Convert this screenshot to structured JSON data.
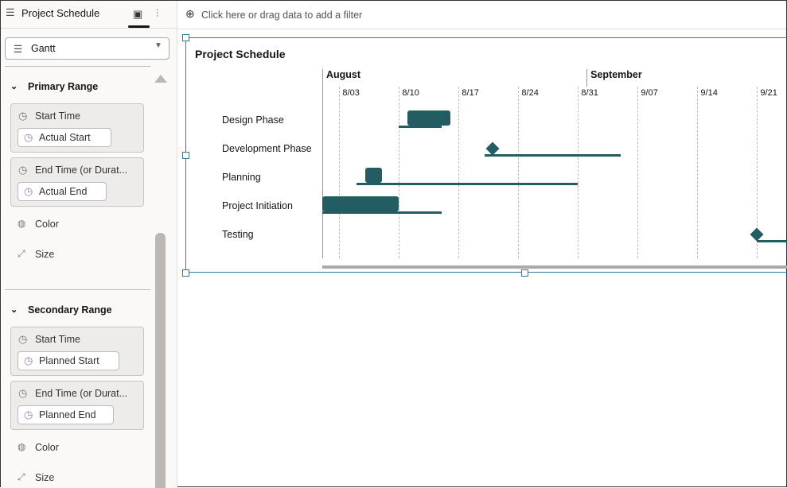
{
  "sidebar": {
    "title": "Project Schedule",
    "viz_type": "Gantt",
    "primary": {
      "heading": "Primary Range",
      "start_label": "Start Time",
      "start_value": "Actual Start",
      "end_label": "End Time (or Durat...",
      "end_value": "Actual End",
      "color": "Color",
      "size": "Size"
    },
    "secondary": {
      "heading": "Secondary Range",
      "start_label": "Start Time",
      "start_value": "Planned Start",
      "end_label": "End Time (or Durat...",
      "end_value": "Planned End",
      "color": "Color",
      "size": "Size"
    }
  },
  "filter": {
    "placeholder": "Click here or drag data to add a filter"
  },
  "chart_data": {
    "type": "gantt",
    "title": "Project Schedule",
    "months": [
      "August",
      "September"
    ],
    "ticks": [
      "8/03",
      "8/10",
      "8/17",
      "8/24",
      "8/31",
      "9/07",
      "9/14",
      "9/21"
    ],
    "bar_color": "#245c63",
    "tasks": [
      {
        "name": "Design Phase",
        "actual": [
          "8/11",
          "8/16"
        ],
        "planned": [
          "8/10",
          "8/15"
        ]
      },
      {
        "name": "Development Phase",
        "actual": [
          "8/21",
          "8/21"
        ],
        "planned": [
          "8/20",
          "9/05"
        ]
      },
      {
        "name": "Planning",
        "actual": [
          "8/06",
          "8/08"
        ],
        "planned": [
          "8/05",
          "8/31"
        ]
      },
      {
        "name": "Project Initiation",
        "actual": [
          "8/01",
          "8/10"
        ],
        "planned": [
          "8/01",
          "8/15"
        ]
      },
      {
        "name": "Testing",
        "actual": [
          "9/21",
          "9/21"
        ],
        "planned": [
          "9/21",
          "9/30"
        ]
      }
    ]
  }
}
